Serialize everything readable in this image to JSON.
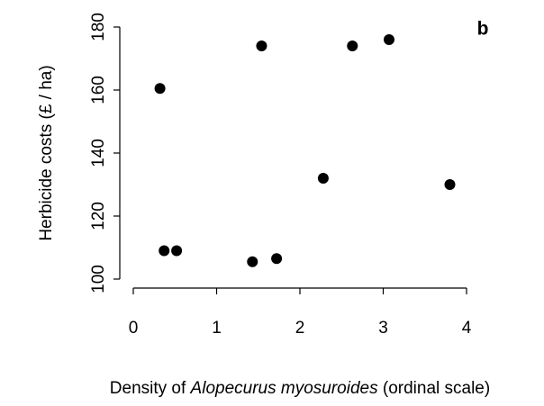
{
  "chart_data": {
    "type": "scatter",
    "panel_label": "b",
    "y_label": "Herbicide costs (£ / ha)",
    "x_label": {
      "prefix": "Density of ",
      "italic": "Alopecurus myosuroides",
      "suffix": " (ordinal scale)"
    },
    "x": [
      0.32,
      0.37,
      0.52,
      1.43,
      1.54,
      1.72,
      2.28,
      2.63,
      3.07,
      3.8
    ],
    "values": [
      160.5,
      109,
      109,
      105.5,
      174,
      106.5,
      132,
      174,
      176,
      130
    ],
    "color": "#000000",
    "xlim": [
      0,
      4
    ],
    "xticks": [
      0,
      1,
      2,
      3,
      4
    ],
    "ylim": [
      100,
      180
    ],
    "yticks": [
      100,
      120,
      140,
      160,
      180
    ]
  }
}
